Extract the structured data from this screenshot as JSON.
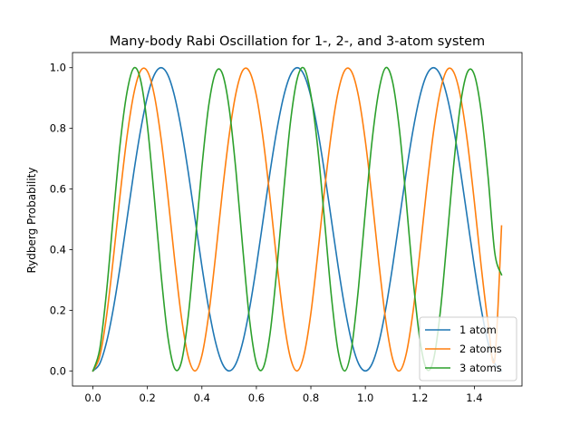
{
  "chart_data": {
    "type": "line",
    "title": "Many-body Rabi Oscillation for 1-, 2-, and 3-atom system",
    "xlabel": "",
    "ylabel": "Rydberg Probability",
    "xlim": [
      -0.075,
      1.575
    ],
    "ylim": [
      -0.05,
      1.05
    ],
    "x_ticks": [
      0.0,
      0.2,
      0.4,
      0.6,
      0.8,
      1.0,
      1.2,
      1.4
    ],
    "x_tick_labels": [
      "0.0",
      "0.2",
      "0.4",
      "0.6",
      "0.8",
      "1.0",
      "1.2",
      "1.4"
    ],
    "y_ticks": [
      0.0,
      0.2,
      0.4,
      0.6,
      0.8,
      1.0
    ],
    "y_tick_labels": [
      "0.0",
      "0.2",
      "0.4",
      "0.6",
      "0.8",
      "1.0"
    ],
    "grid": false,
    "legend_position": "lower-right",
    "x": [
      0.0,
      0.025,
      0.05,
      0.075,
      0.1,
      0.125,
      0.15,
      0.175,
      0.2,
      0.225,
      0.25,
      0.275,
      0.3,
      0.325,
      0.35,
      0.375,
      0.4,
      0.425,
      0.45,
      0.475,
      0.5,
      0.525,
      0.55,
      0.575,
      0.6,
      0.625,
      0.65,
      0.675,
      0.7,
      0.725,
      0.75,
      0.775,
      0.8,
      0.825,
      0.85,
      0.875,
      0.9,
      0.925,
      0.95,
      0.975,
      1.0,
      1.025,
      1.05,
      1.075,
      1.1,
      1.125,
      1.15,
      1.175,
      1.2,
      1.225,
      1.25,
      1.275,
      1.3,
      1.325,
      1.35,
      1.375,
      1.4,
      1.425,
      1.45,
      1.475,
      1.5
    ],
    "series": [
      {
        "name": "1 atom",
        "color": "#1f77b4",
        "values": [
          0.0,
          0.024,
          0.095,
          0.206,
          0.345,
          0.5,
          0.655,
          0.794,
          0.905,
          0.976,
          1.0,
          0.976,
          0.905,
          0.794,
          0.655,
          0.5,
          0.345,
          0.206,
          0.095,
          0.024,
          0.0,
          0.024,
          0.095,
          0.206,
          0.345,
          0.5,
          0.655,
          0.794,
          0.905,
          0.976,
          1.0,
          0.976,
          0.905,
          0.794,
          0.655,
          0.5,
          0.345,
          0.206,
          0.095,
          0.024,
          0.0,
          0.024,
          0.095,
          0.206,
          0.345,
          0.5,
          0.655,
          0.794,
          0.905,
          0.976,
          1.0,
          0.976,
          0.905,
          0.794,
          0.655,
          0.5,
          0.345,
          0.206,
          0.095,
          0.024,
          0.0
        ]
      },
      {
        "name": "2 atoms",
        "color": "#ff7f0e",
        "values": [
          0.0,
          0.048,
          0.181,
          0.372,
          0.583,
          0.772,
          0.914,
          0.99,
          0.988,
          0.911,
          0.767,
          0.577,
          0.366,
          0.176,
          0.046,
          0.0,
          0.051,
          0.186,
          0.378,
          0.589,
          0.776,
          0.916,
          0.991,
          0.987,
          0.908,
          0.763,
          0.571,
          0.36,
          0.171,
          0.043,
          0.0,
          0.054,
          0.19,
          0.384,
          0.595,
          0.782,
          0.92,
          0.992,
          0.986,
          0.905,
          0.758,
          0.565,
          0.353,
          0.166,
          0.04,
          0.0,
          0.056,
          0.195,
          0.39,
          0.601,
          0.787,
          0.923,
          0.993,
          0.984,
          0.901,
          0.753,
          0.559,
          0.347,
          0.161,
          0.038,
          0.478
        ]
      },
      {
        "name": "3 atoms",
        "color": "#2ca02c",
        "values": [
          0.0,
          0.072,
          0.262,
          0.512,
          0.75,
          0.919,
          0.999,
          0.959,
          0.808,
          0.574,
          0.32,
          0.113,
          0.008,
          0.03,
          0.181,
          0.419,
          0.672,
          0.875,
          0.983,
          0.981,
          0.867,
          0.66,
          0.405,
          0.168,
          0.026,
          0.01,
          0.122,
          0.334,
          0.59,
          0.82,
          0.964,
          0.998,
          0.911,
          0.738,
          0.497,
          0.249,
          0.065,
          0.0,
          0.079,
          0.276,
          0.527,
          0.762,
          0.926,
          1.0,
          0.953,
          0.796,
          0.56,
          0.305,
          0.104,
          0.006,
          0.036,
          0.194,
          0.435,
          0.686,
          0.884,
          0.986,
          0.977,
          0.857,
          0.645,
          0.39,
          0.317
        ]
      }
    ]
  }
}
